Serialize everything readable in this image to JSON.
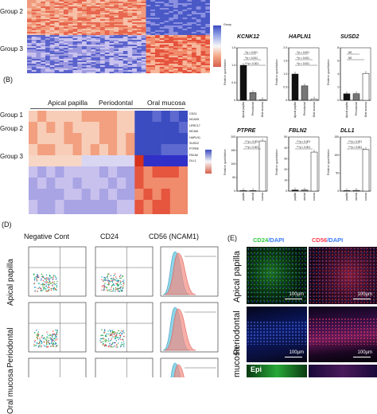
{
  "heatmap_a": {
    "group_labels": [
      "Group 2",
      "Group 3"
    ],
    "colorkey_title": "Group",
    "scale_ticks": [
      "",
      "",
      "",
      ""
    ]
  },
  "panel_b": {
    "label": "(B)",
    "columns": [
      "Apical papilla",
      "Periodontal",
      "Oral mucosa"
    ],
    "group_labels": [
      "Group 1",
      "Group 2",
      "Group 3"
    ],
    "genes": [
      "CD24",
      "NCAM1",
      "LRRC17",
      "MCAM",
      "HAPLN1",
      "SUSD2",
      "PTPRE",
      "FBLN2",
      "DLL1"
    ]
  },
  "panel_c": {
    "ylabel": "Relative quantitation",
    "xcats": [
      "Apical papilla",
      "Periodontal",
      "Oral mucosa"
    ],
    "charts": [
      {
        "gene": "KCNK12",
        "yticks": [
          "0",
          "0.5",
          "1.0",
          "1.5"
        ],
        "ann": [
          "**p < 0.001",
          "**p < 0.001",
          "***p < 0.001"
        ]
      },
      {
        "gene": "HAPLN1",
        "yticks": [
          "0",
          "0.5",
          "1.0",
          "1.5",
          "2.0"
        ],
        "ann": [
          "**p < 0.001",
          "**p < 0.001",
          "**p < 0.001"
        ]
      },
      {
        "gene": "SUSD2",
        "yticks": [
          "0",
          "2",
          "4",
          "6",
          "8"
        ],
        "ann": [
          "NS",
          "NS"
        ]
      },
      {
        "gene": "PTPRE",
        "yticks": [
          "0",
          "50",
          "100",
          "150",
          "200"
        ],
        "ann": [
          "***p < 0.001",
          "***p < 0.001"
        ]
      },
      {
        "gene": "FBLN2",
        "yticks": [
          "0",
          "10",
          "20",
          "30",
          "40",
          "50"
        ],
        "ann": [
          "***p < 0.001",
          "***p < 0.001"
        ]
      },
      {
        "gene": "DLL1",
        "yticks": [
          "0",
          "50",
          "100",
          "150"
        ],
        "ann": [
          "***p < 0.001",
          "***p < 0.001"
        ]
      }
    ]
  },
  "chart_data": [
    {
      "type": "bar",
      "title": "KCNK12",
      "ylabel": "Relative quantitation",
      "categories": [
        "Apical papilla",
        "Periodontal",
        "Oral mucosa"
      ],
      "values": [
        1.0,
        0.22,
        0.02
      ],
      "ylim": [
        0,
        1.5
      ]
    },
    {
      "type": "bar",
      "title": "HAPLN1",
      "ylabel": "Relative quantitation",
      "categories": [
        "Apical papilla",
        "Periodontal",
        "Oral mucosa"
      ],
      "values": [
        1.0,
        0.55,
        0.05
      ],
      "ylim": [
        0,
        2.0
      ]
    },
    {
      "type": "bar",
      "title": "SUSD2",
      "ylabel": "Relative quantitation",
      "categories": [
        "Apical papilla",
        "Periodontal",
        "Oral mucosa"
      ],
      "values": [
        1.0,
        1.0,
        4.1
      ],
      "ylim": [
        0,
        8
      ]
    },
    {
      "type": "bar",
      "title": "PTPRE",
      "ylabel": "Relative quantitation",
      "categories": [
        "Apical papilla",
        "Periodontal",
        "Oral mucosa"
      ],
      "values": [
        1,
        2,
        185
      ],
      "ylim": [
        0,
        200
      ]
    },
    {
      "type": "bar",
      "title": "FBLN2",
      "ylabel": "Relative quantitation",
      "categories": [
        "Apical papilla",
        "Periodontal",
        "Oral mucosa"
      ],
      "values": [
        1,
        1,
        36
      ],
      "ylim": [
        0,
        50
      ]
    },
    {
      "type": "bar",
      "title": "DLL1",
      "ylabel": "Relative quantitation",
      "categories": [
        "Apical papilla",
        "Periodontal",
        "Oral mucosa"
      ],
      "values": [
        1,
        2,
        115
      ],
      "ylim": [
        0,
        150
      ]
    }
  ],
  "panel_d": {
    "label": "(D)",
    "columns": [
      "Negative Cont",
      "CD24",
      "CD56 (NCAM1)"
    ],
    "rows": [
      "Apical papilla",
      "Periodontal",
      "Oral mucosa"
    ]
  },
  "panel_e": {
    "label": "(E)",
    "col1_a": "CD24",
    "col1_b": "/DAPI",
    "col2_a": "CD56",
    "col2_b": "/DAPI",
    "rows": [
      "Apical papilla",
      "Periodontal",
      "mucosa"
    ],
    "scale": "100µm",
    "epi": "Epi"
  },
  "colors": {
    "red": "#e0533f",
    "salmon": "#f4a582",
    "blue": "#3b4cc0",
    "lavender": "#b7b4e8",
    "cd24_green": "#2ecc40",
    "cd56_red": "#ff3b4e",
    "dapi_blue": "#3a7bff"
  }
}
